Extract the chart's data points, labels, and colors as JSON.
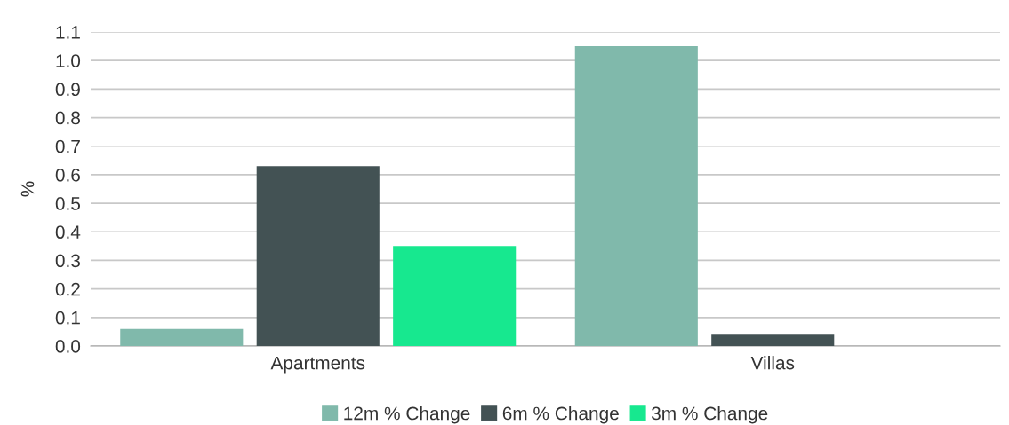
{
  "chart_data": {
    "type": "bar",
    "ylabel": "%",
    "categories": [
      "Apartments",
      "Villas"
    ],
    "series": [
      {
        "name": "12m % Change",
        "color": "#80b9ab",
        "values": [
          0.06,
          1.05
        ]
      },
      {
        "name": "6m % Change",
        "color": "#435254",
        "values": [
          0.63,
          0.04
        ]
      },
      {
        "name": "3m % Change",
        "color": "#17e88f",
        "values": [
          0.35,
          0
        ]
      }
    ],
    "ylim": [
      0,
      1.1
    ],
    "yticks": [
      {
        "value": 0,
        "label": "0.0"
      },
      0.1,
      0.2,
      0.3,
      0.4,
      0.5,
      0.6,
      0.7,
      0.8,
      0.9,
      {
        "value": 1,
        "label": "1.0"
      },
      1.1
    ],
    "grid": "y",
    "legend": "bottom"
  }
}
